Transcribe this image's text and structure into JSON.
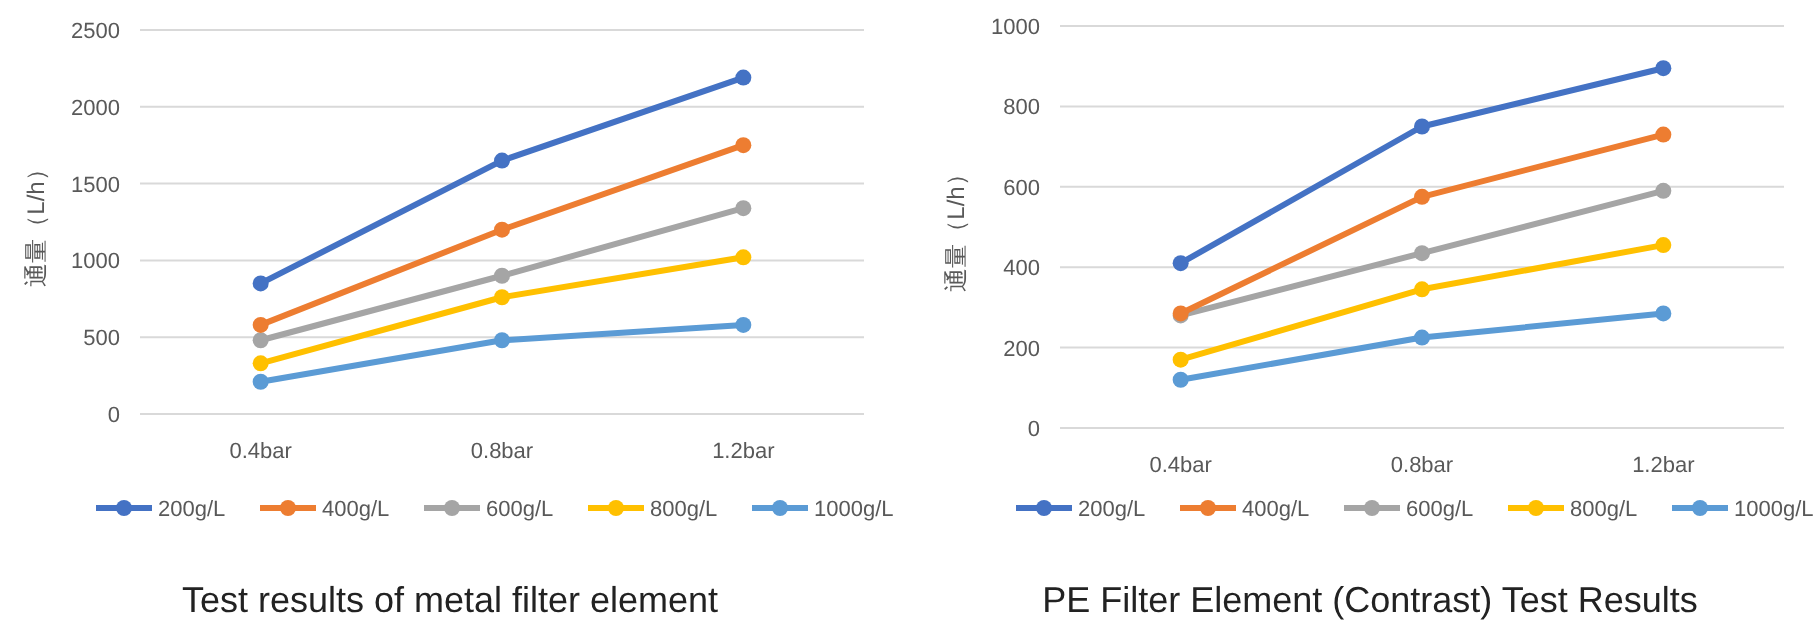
{
  "chart_data": [
    {
      "type": "line",
      "title": "Test results of metal filter element",
      "ylabel": "通量（L/h）",
      "categories": [
        "0.4bar",
        "0.8bar",
        "1.2bar"
      ],
      "ylim": [
        0,
        2500
      ],
      "yticks": [
        0,
        500,
        1000,
        1500,
        2000,
        2500
      ],
      "grid": "y",
      "legend": "bottom",
      "marker": "circle",
      "line_style": "solid",
      "series": [
        {
          "name": "200g/L",
          "color": "#4472c4",
          "values": [
            850,
            1650,
            2190
          ]
        },
        {
          "name": "400g/L",
          "color": "#ed7d31",
          "values": [
            580,
            1200,
            1750
          ]
        },
        {
          "name": "600g/L",
          "color": "#a5a5a5",
          "values": [
            480,
            900,
            1340
          ]
        },
        {
          "name": "800g/L",
          "color": "#ffc000",
          "values": [
            330,
            760,
            1020
          ]
        },
        {
          "name": "1000g/L",
          "color": "#5b9bd5",
          "values": [
            210,
            480,
            580
          ]
        }
      ]
    },
    {
      "type": "line",
      "title": "PE Filter Element (Contrast) Test Results",
      "ylabel": "通量（L/h）",
      "categories": [
        "0.4bar",
        "0.8bar",
        "1.2bar"
      ],
      "ylim": [
        0,
        1000
      ],
      "yticks": [
        0,
        200,
        400,
        600,
        800,
        1000
      ],
      "grid": "y",
      "legend": "bottom",
      "marker": "circle",
      "line_style": "solid",
      "series": [
        {
          "name": "200g/L",
          "color": "#4472c4",
          "values": [
            410,
            750,
            895
          ]
        },
        {
          "name": "400g/L",
          "color": "#ed7d31",
          "values": [
            285,
            575,
            730
          ]
        },
        {
          "name": "600g/L",
          "color": "#a5a5a5",
          "values": [
            280,
            435,
            590
          ]
        },
        {
          "name": "800g/L",
          "color": "#ffc000",
          "values": [
            170,
            345,
            455
          ]
        },
        {
          "name": "1000g/L",
          "color": "#5b9bd5",
          "values": [
            120,
            225,
            285
          ]
        }
      ]
    }
  ]
}
